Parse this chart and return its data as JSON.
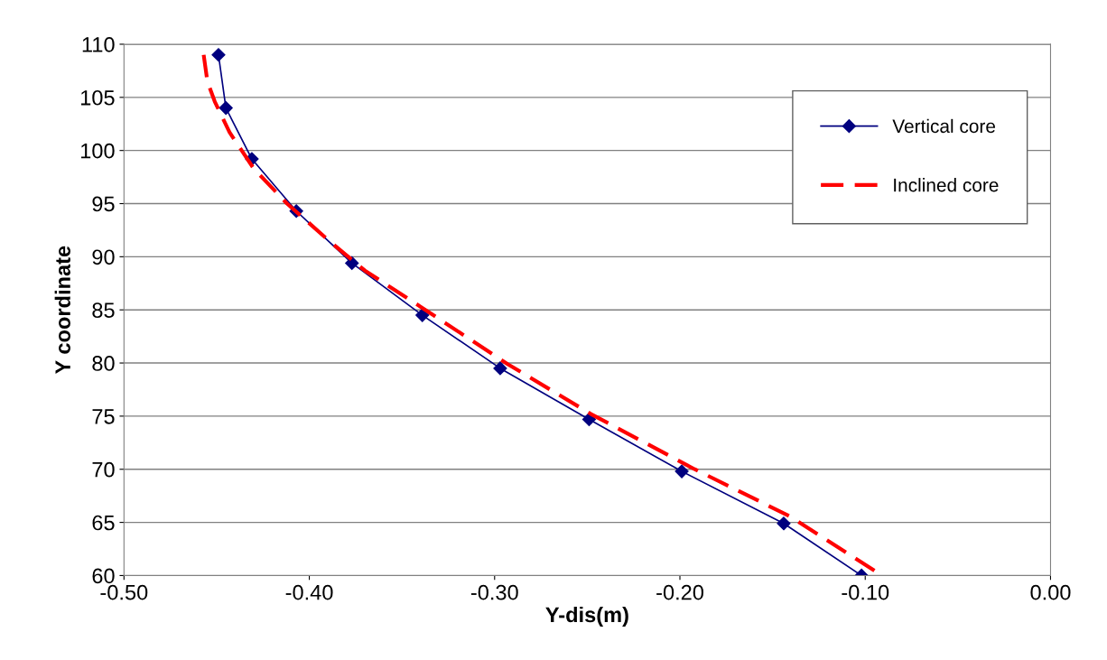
{
  "chart_data": {
    "type": "line",
    "xlabel": "Y-dis(m)",
    "ylabel": "Y coordinate",
    "xlim": [
      -0.5,
      0.0
    ],
    "xticks": [
      {
        "value": -0.5,
        "label": "-0.50"
      },
      {
        "value": -0.4,
        "label": "-0.40"
      },
      {
        "value": -0.3,
        "label": "-0.30"
      },
      {
        "value": -0.2,
        "label": "-0.20"
      },
      {
        "value": -0.1,
        "label": "-0.10"
      },
      {
        "value": 0.0,
        "label": "0.00"
      }
    ],
    "ylim": [
      60,
      110
    ],
    "yticks": [
      60,
      65,
      70,
      75,
      80,
      85,
      90,
      95,
      100,
      105,
      110
    ],
    "grid": "y",
    "legend": "top right",
    "series": [
      {
        "name": "Vertical core",
        "color": "#00007f",
        "marker": "diamond",
        "line_style": "solid",
        "x": [
          -0.449,
          -0.445,
          -0.431,
          -0.407,
          -0.377,
          -0.339,
          -0.297,
          -0.249,
          -0.199,
          -0.144,
          -0.102
        ],
        "values": [
          109.0,
          104.0,
          99.2,
          94.3,
          89.4,
          84.5,
          79.5,
          74.7,
          69.8,
          64.9,
          60.0
        ]
      },
      {
        "name": "Inclined core",
        "color": "#ff0000",
        "marker": "none",
        "line_style": "dashed",
        "x": [
          -0.457,
          -0.455,
          -0.451,
          -0.443,
          -0.43,
          -0.412,
          -0.39,
          -0.37,
          -0.34,
          -0.293,
          -0.248,
          -0.192,
          -0.141,
          -0.091
        ],
        "values": [
          109.0,
          106.5,
          104.6,
          101.7,
          98.3,
          95.0,
          91.6,
          88.7,
          85.3,
          79.9,
          75.2,
          70.0,
          65.6,
          60.0
        ]
      }
    ]
  }
}
